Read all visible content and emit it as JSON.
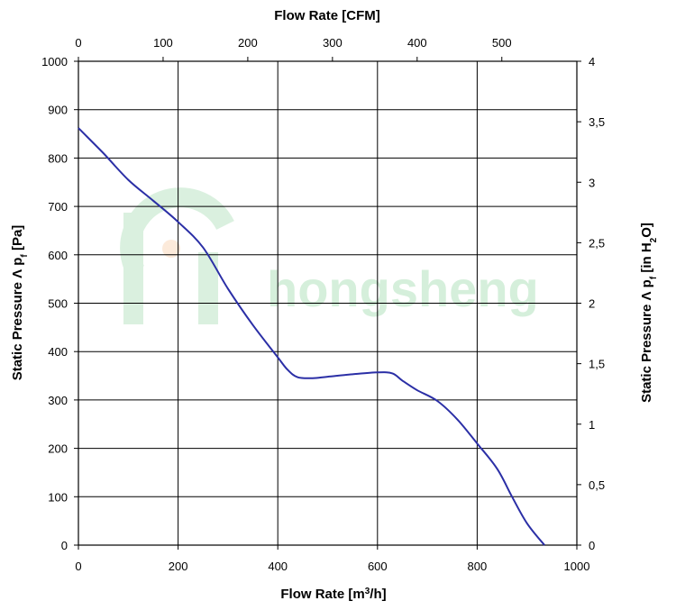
{
  "chart_data": {
    "type": "line",
    "xlabel_bottom_prefix": "Flow Rate [m",
    "xlabel_bottom_sup": "3",
    "xlabel_bottom_suffix": "/h]",
    "xlabel_top": "Flow Rate [CFM]",
    "ylabel_left_prefix": "Static Pressure Λ p",
    "ylabel_left_sub": "f",
    "ylabel_left_suffix": " [Pa]",
    "ylabel_right_prefix": "Static Pressure Λ p",
    "ylabel_right_sub": "f",
    "ylabel_right_mid": " [in H",
    "ylabel_right_sub2": "2",
    "ylabel_right_suffix": "O]",
    "xlim": [
      0,
      1000
    ],
    "ylim": [
      0,
      1000
    ],
    "x_ticks": [
      "0",
      "200",
      "400",
      "600",
      "800",
      "1000"
    ],
    "y_ticks": [
      "0",
      "100",
      "200",
      "300",
      "400",
      "500",
      "600",
      "700",
      "800",
      "900",
      "1000"
    ],
    "top_xlim": [
      0,
      588.6
    ],
    "top_ticks": [
      "0",
      "100",
      "200",
      "300",
      "400",
      "500"
    ],
    "right_ylim": [
      0,
      4
    ],
    "right_ticks": [
      "0",
      "0,5",
      "1",
      "1,5",
      "2",
      "2,5",
      "3",
      "3,5",
      "4"
    ],
    "grid": true,
    "series": [
      {
        "x": [
          0,
          50,
          100,
          150,
          200,
          250,
          300,
          350,
          400,
          420,
          440,
          470,
          500,
          550,
          600,
          630,
          650,
          680,
          720,
          760,
          800,
          840,
          870,
          900,
          935
        ],
        "y": [
          862,
          810,
          755,
          712,
          668,
          615,
          530,
          455,
          388,
          362,
          347,
          345,
          348,
          353,
          357,
          355,
          340,
          320,
          298,
          260,
          210,
          158,
          100,
          45,
          0
        ]
      }
    ],
    "color": "#2b2fa6"
  },
  "watermark": {
    "text": "hongsheng",
    "color": "#1ea83c"
  }
}
